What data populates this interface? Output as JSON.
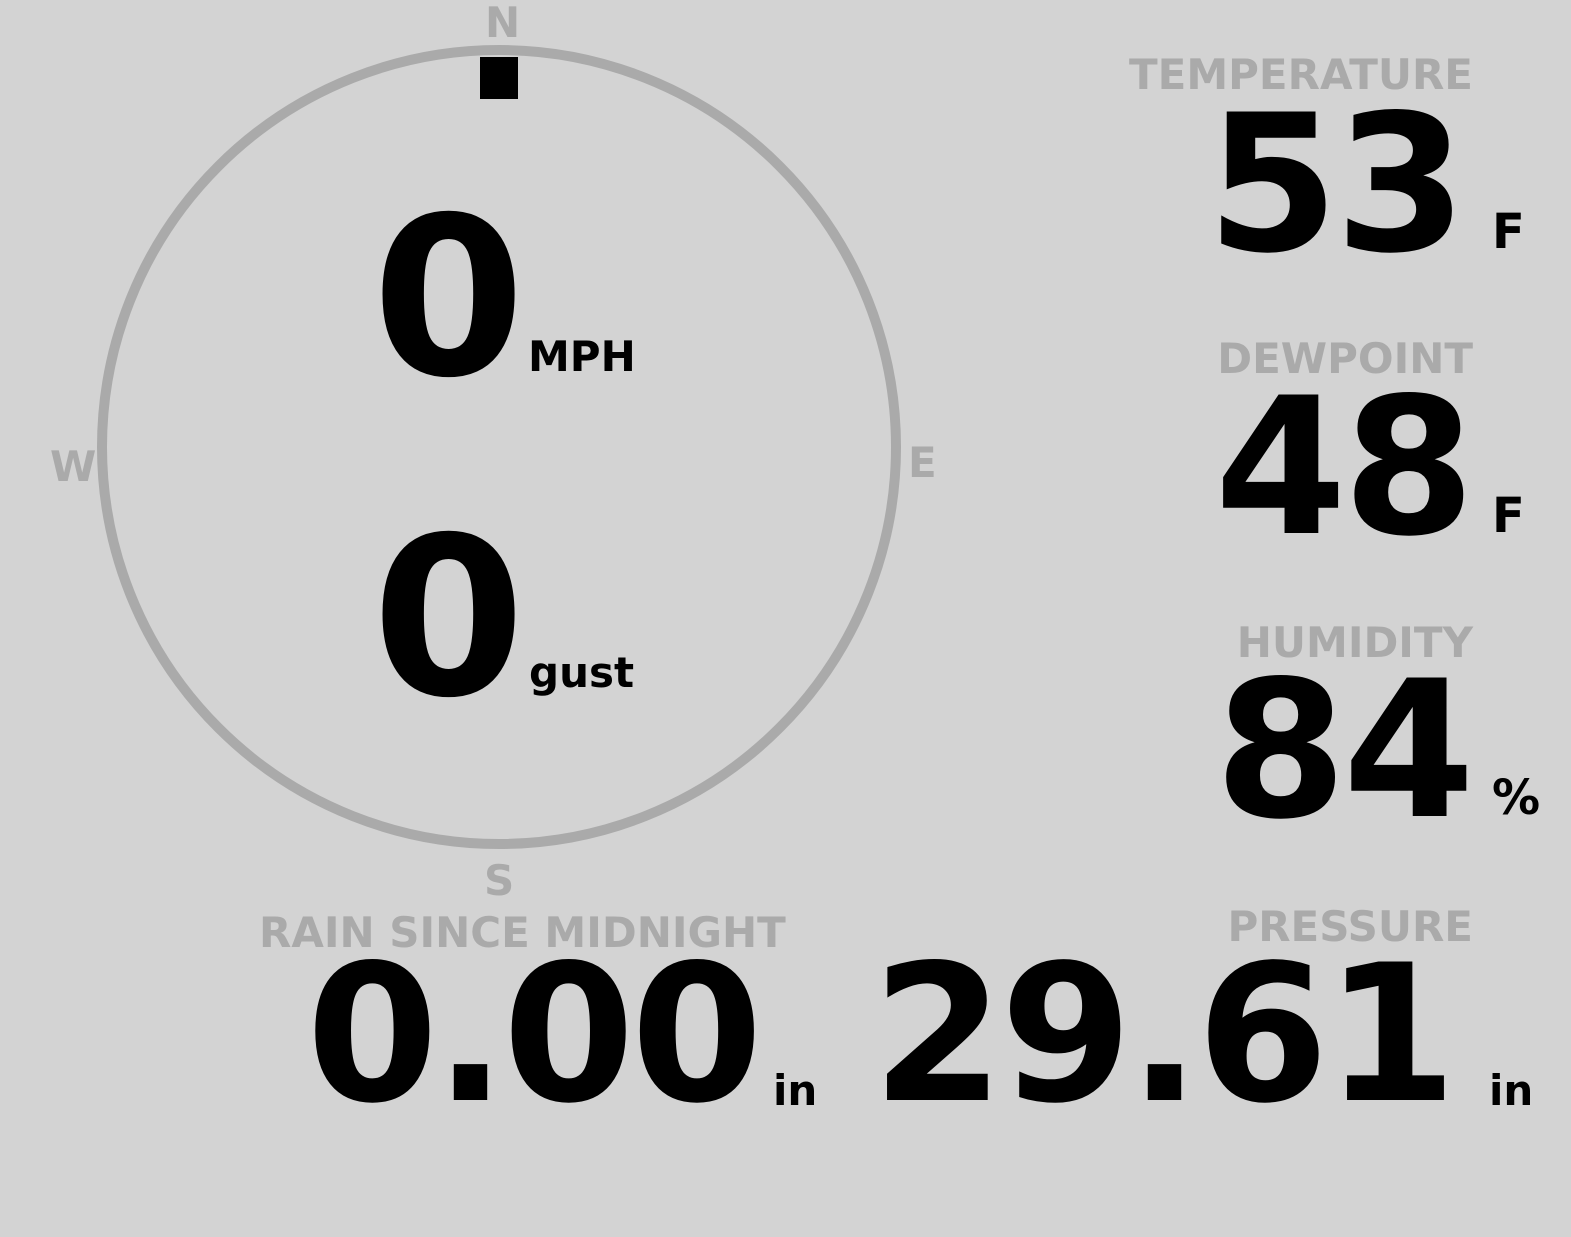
{
  "colors": {
    "background": "#d3d3d3",
    "label": "#aaaaaa",
    "value": "#000000",
    "ring": "#aaaaaa"
  },
  "wind": {
    "compass": {
      "n": "N",
      "e": "E",
      "s": "S",
      "w": "W"
    },
    "direction_degrees": 0,
    "speed": "0",
    "speed_unit": "MPH",
    "gust": "0",
    "gust_unit": "gust"
  },
  "temperature": {
    "label": "TEMPERATURE",
    "value": "53",
    "unit": "F"
  },
  "dewpoint": {
    "label": "DEWPOINT",
    "value": "48",
    "unit": "F"
  },
  "humidity": {
    "label": "HUMIDITY",
    "value": "84",
    "unit": "%"
  },
  "rain": {
    "label": "RAIN SINCE MIDNIGHT",
    "value": "0.00",
    "unit": "in"
  },
  "pressure": {
    "label": "PRESSURE",
    "value": "29.61",
    "unit": "in"
  }
}
